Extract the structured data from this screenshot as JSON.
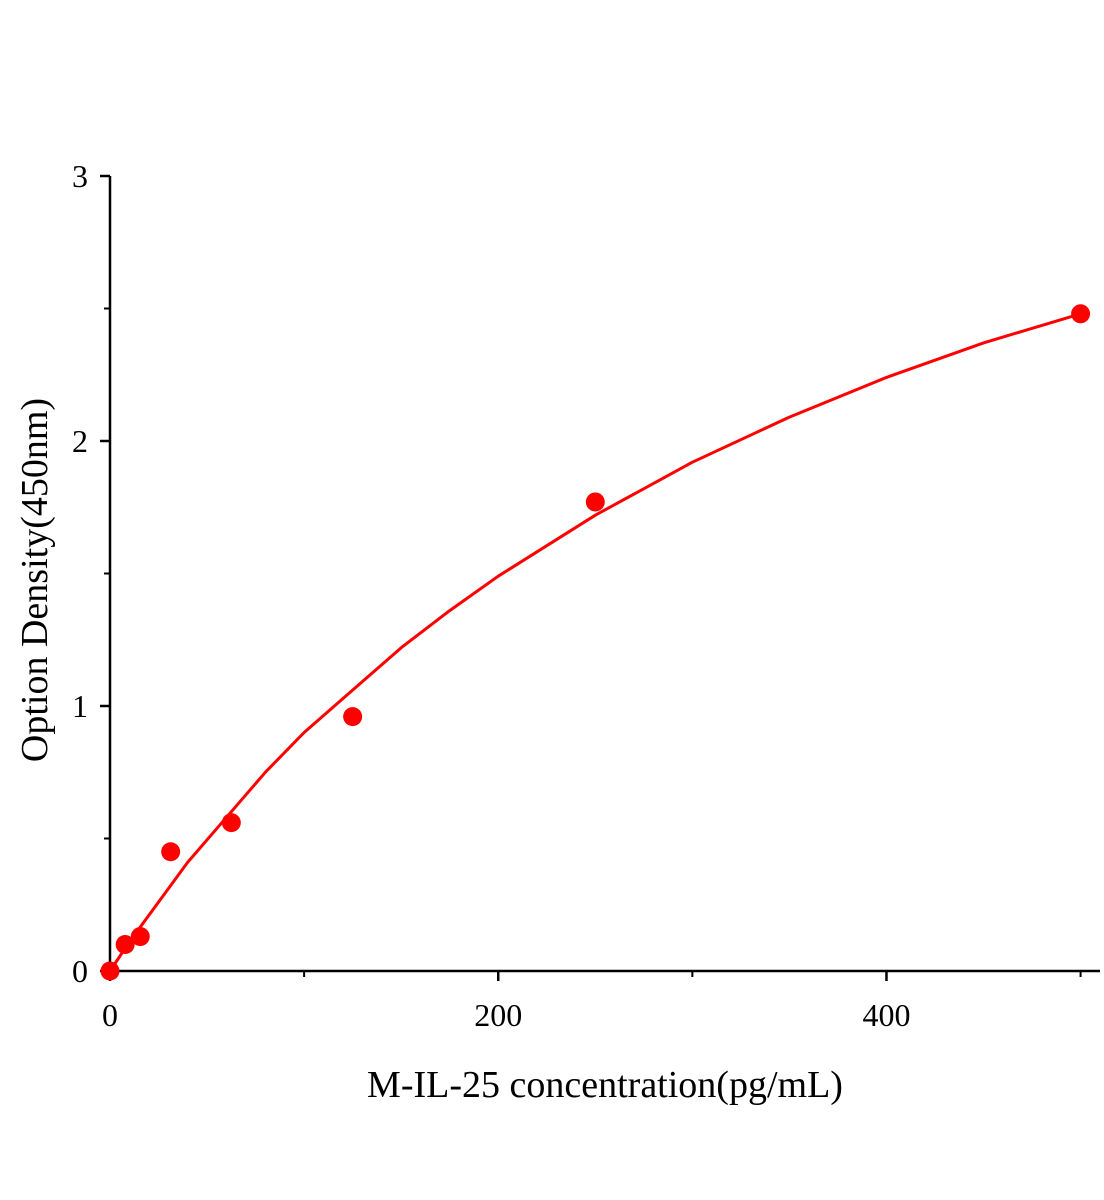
{
  "chart_data": {
    "type": "scatter",
    "title": "",
    "xlabel": "M-IL-25 concentration(pg/mL)",
    "ylabel": "Option Density(450nm)",
    "xlim": [
      0,
      510
    ],
    "ylim": [
      0,
      3
    ],
    "x_ticks": [
      0,
      200,
      400
    ],
    "x_minor_ticks": [
      100,
      300,
      500
    ],
    "y_ticks": [
      0,
      1,
      2,
      3
    ],
    "y_minor_ticks": [
      0.5,
      1.5,
      2.5
    ],
    "grid": false,
    "color": "#ff0000",
    "points": {
      "x": [
        0,
        7.8,
        15.6,
        31.25,
        62.5,
        125,
        250,
        500
      ],
      "y": [
        0.0,
        0.1,
        0.13,
        0.45,
        0.56,
        0.96,
        1.77,
        2.48
      ]
    },
    "fit_curve": {
      "x": [
        0,
        10,
        20,
        40,
        60,
        80,
        100,
        125,
        150,
        175,
        200,
        250,
        300,
        350,
        400,
        450,
        500
      ],
      "y": [
        0.0,
        0.11,
        0.21,
        0.41,
        0.58,
        0.75,
        0.9,
        1.06,
        1.22,
        1.36,
        1.49,
        1.72,
        1.92,
        2.09,
        2.24,
        2.37,
        2.48
      ]
    }
  }
}
